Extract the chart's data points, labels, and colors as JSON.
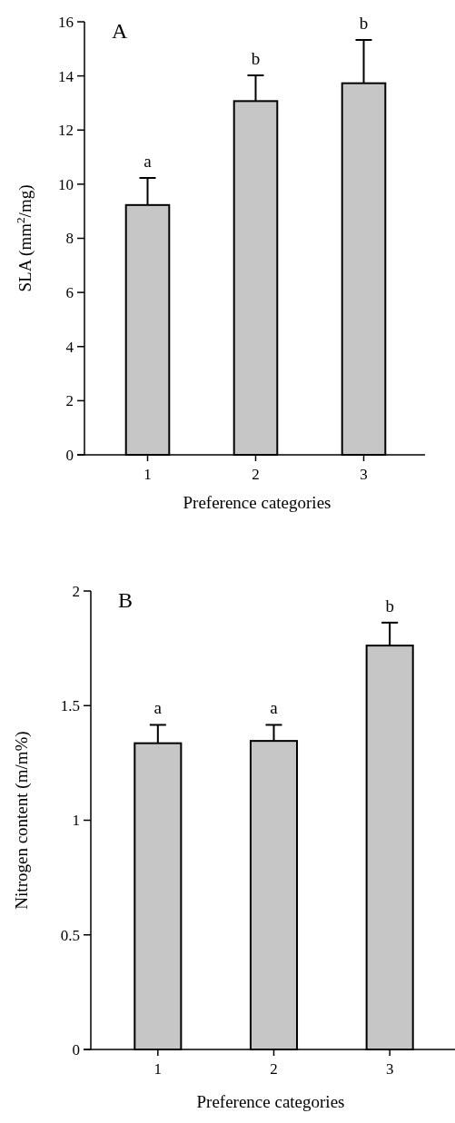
{
  "chart_data": [
    {
      "type": "bar",
      "categories": [
        "1",
        "2",
        "3"
      ],
      "values": [
        9.23,
        13.07,
        13.73
      ],
      "errors": [
        1.0,
        0.95,
        1.6
      ],
      "color": "#c6c6c6",
      "xlabel": "Preference categories",
      "ylabel": "SLA (mm$^{2}$/mg)",
      "ylim": [
        0,
        16
      ],
      "yticks": [
        0,
        2,
        4,
        6,
        8,
        10,
        12,
        14,
        16
      ],
      "grid": false,
      "annotations": [
        "A",
        {
          "text": "a",
          "x": "1",
          "y": 10.23
        },
        {
          "text": "b",
          "x": "2",
          "y": 14.02
        },
        {
          "text": "b",
          "x": "3",
          "y": 15.33
        }
      ]
    },
    {
      "type": "bar",
      "categories": [
        "1",
        "2",
        "3"
      ],
      "values": [
        1.336,
        1.346,
        1.762
      ],
      "errors": [
        0.08,
        0.07,
        0.1
      ],
      "color": "#c6c6c6",
      "xlabel": "Preference categories",
      "ylabel": "Nitrogen content (m/m%)",
      "ylim": [
        0,
        2
      ],
      "yticks": [
        0,
        0.5,
        1,
        1.5,
        2
      ],
      "grid": false,
      "annotations": [
        "B",
        {
          "text": "a",
          "x": "1",
          "y": 1.416
        },
        {
          "text": "a",
          "x": "2",
          "y": 1.416
        },
        {
          "text": "b",
          "x": "3",
          "y": 1.862
        }
      ]
    }
  ]
}
